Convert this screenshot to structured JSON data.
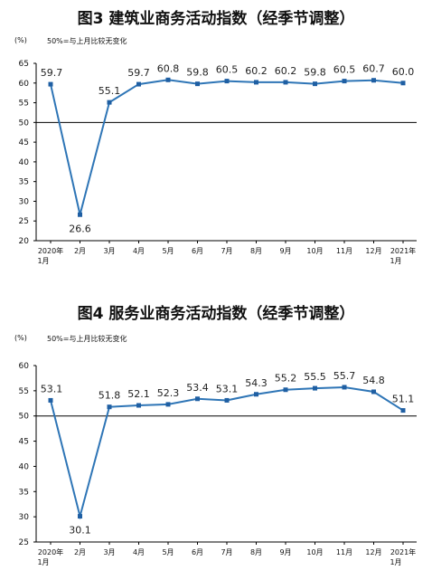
{
  "chart_data": [
    {
      "type": "line",
      "title": "图3  建筑业商务活动指数（经季节调整）",
      "unit": "(%)",
      "note": "50%=与上月比较无变化",
      "x": [
        "2020年 1月",
        "2月",
        "3月",
        "4月",
        "5月",
        "6月",
        "7月",
        "8月",
        "9月",
        "10月",
        "11月",
        "12月",
        "2021年 1月"
      ],
      "x_ticks": [
        [
          "2020年",
          "1月"
        ],
        [
          "2月"
        ],
        [
          "3月"
        ],
        [
          "4月"
        ],
        [
          "5月"
        ],
        [
          "6月"
        ],
        [
          "7月"
        ],
        [
          "8月"
        ],
        [
          "9月"
        ],
        [
          "10月"
        ],
        [
          "11月"
        ],
        [
          "12月"
        ],
        [
          "2021年",
          "1月"
        ]
      ],
      "values": [
        59.7,
        26.6,
        55.1,
        59.7,
        60.8,
        59.8,
        60.5,
        60.2,
        60.2,
        59.8,
        60.5,
        60.7,
        60.0
      ],
      "data_labels": [
        "59.7",
        "26.6",
        "55.1",
        "59.7",
        "60.8",
        "59.8",
        "60.5",
        "60.2",
        "60.2",
        "59.8",
        "60.5",
        "60.7",
        "60.0"
      ],
      "ylim": [
        20,
        65
      ],
      "yticks": [
        20,
        25,
        30,
        35,
        40,
        45,
        50,
        55,
        60,
        65
      ],
      "reference_line": 50,
      "grid": false,
      "line_color": "#2e75b6",
      "marker_color": "#1f5fa3"
    },
    {
      "type": "line",
      "title": "图4  服务业商务活动指数（经季节调整）",
      "unit": "(%)",
      "note": "50%=与上月比较无变化",
      "x": [
        "2020年 1月",
        "2月",
        "3月",
        "4月",
        "5月",
        "6月",
        "7月",
        "8月",
        "9月",
        "10月",
        "11月",
        "12月",
        "2021年 1月"
      ],
      "x_ticks": [
        [
          "2020年",
          "1月"
        ],
        [
          "2月"
        ],
        [
          "3月"
        ],
        [
          "4月"
        ],
        [
          "5月"
        ],
        [
          "6月"
        ],
        [
          "7月"
        ],
        [
          "8月"
        ],
        [
          "9月"
        ],
        [
          "10月"
        ],
        [
          "11月"
        ],
        [
          "12月"
        ],
        [
          "2021年",
          "1月"
        ]
      ],
      "values": [
        53.1,
        30.1,
        51.8,
        52.1,
        52.3,
        53.4,
        53.1,
        54.3,
        55.2,
        55.5,
        55.7,
        54.8,
        51.1
      ],
      "data_labels": [
        "53.1",
        "30.1",
        "51.8",
        "52.1",
        "52.3",
        "53.4",
        "53.1",
        "54.3",
        "55.2",
        "55.5",
        "55.7",
        "54.8",
        "51.1"
      ],
      "ylim": [
        25,
        60
      ],
      "yticks": [
        25,
        30,
        35,
        40,
        45,
        50,
        55,
        60
      ],
      "reference_line": 50,
      "grid": false,
      "line_color": "#2e75b6",
      "marker_color": "#1f5fa3"
    }
  ]
}
